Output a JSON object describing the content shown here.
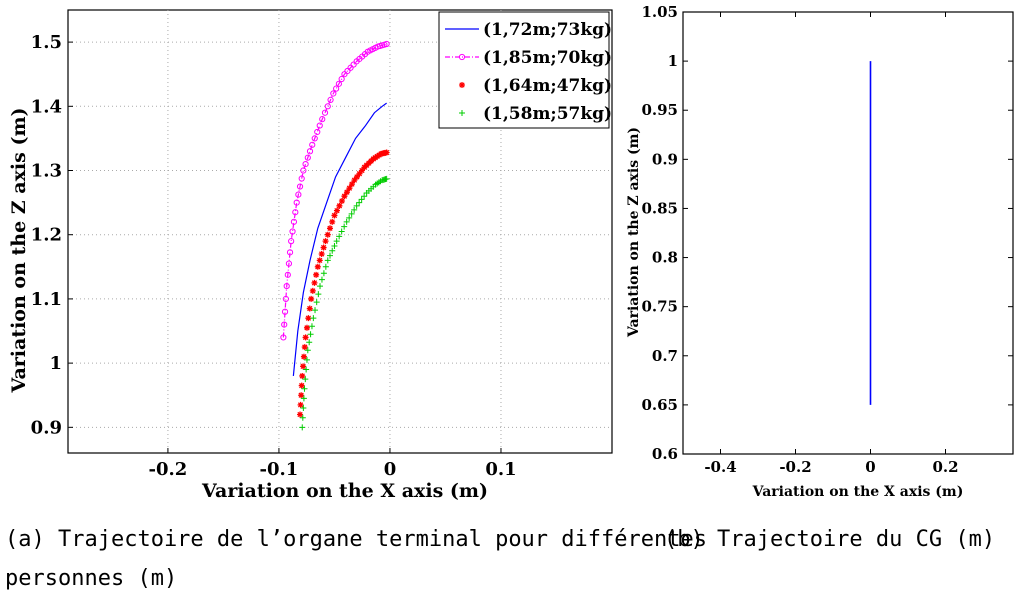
{
  "chart_data": [
    {
      "type": "scatter",
      "xlabel": "Variation on the X axis (m)",
      "ylabel": "Variation on the Z axis (m)",
      "xlim": [
        -0.29,
        0.2
      ],
      "ylim": [
        0.86,
        1.55
      ],
      "xticks": [
        "-0.2",
        "-0.1",
        "0",
        "0.1"
      ],
      "yticks": [
        "0.9",
        "1",
        "1.1",
        "1.2",
        "1.3",
        "1.4",
        "1.5"
      ],
      "grid": true,
      "legend_position": "top-right",
      "caption": "(a) Trajectoire de l’organe terminal pour différentes personnes (m)",
      "series": [
        {
          "name": "(1,72m;73kg)",
          "color": "#0000ff",
          "marker": "none",
          "line": "solid",
          "x": [
            -0.087,
            -0.083,
            -0.078,
            -0.072,
            -0.065,
            -0.057,
            -0.049,
            -0.04,
            -0.031,
            -0.022,
            -0.014,
            -0.007,
            -0.003
          ],
          "y": [
            0.98,
            1.05,
            1.11,
            1.16,
            1.21,
            1.25,
            1.29,
            1.32,
            1.35,
            1.37,
            1.39,
            1.4,
            1.405
          ]
        },
        {
          "name": "(1,85m;70kg)",
          "color": "#ff00ff",
          "marker": "circle",
          "line": "dashdot",
          "x": [
            -0.096,
            -0.093,
            -0.089,
            -0.084,
            -0.078,
            -0.07,
            -0.061,
            -0.051,
            -0.041,
            -0.03,
            -0.02,
            -0.011,
            -0.003
          ],
          "y": [
            1.04,
            1.12,
            1.19,
            1.25,
            1.3,
            1.34,
            1.38,
            1.42,
            1.45,
            1.47,
            1.485,
            1.493,
            1.497
          ]
        },
        {
          "name": "(1,64m;47kg)",
          "color": "#ff0000",
          "marker": "star",
          "line": "none",
          "x": [
            -0.081,
            -0.079,
            -0.076,
            -0.071,
            -0.065,
            -0.058,
            -0.05,
            -0.041,
            -0.032,
            -0.023,
            -0.015,
            -0.008,
            -0.003
          ],
          "y": [
            0.92,
            0.98,
            1.04,
            1.1,
            1.15,
            1.19,
            1.23,
            1.26,
            1.285,
            1.305,
            1.318,
            1.326,
            1.328
          ]
        },
        {
          "name": "(1,58m;57kg)",
          "color": "#00cc00",
          "marker": "plus",
          "line": "none",
          "x": [
            -0.079,
            -0.077,
            -0.074,
            -0.069,
            -0.063,
            -0.056,
            -0.048,
            -0.039,
            -0.03,
            -0.021,
            -0.013,
            -0.007,
            -0.003
          ],
          "y": [
            0.9,
            0.96,
            1.02,
            1.07,
            1.12,
            1.16,
            1.19,
            1.22,
            1.245,
            1.265,
            1.278,
            1.285,
            1.287
          ]
        }
      ]
    },
    {
      "type": "line",
      "xlabel": "Variation on the X axis (m)",
      "ylabel": "Variation on the Z axis (m)",
      "xlim": [
        -0.5,
        0.38
      ],
      "ylim": [
        0.6,
        1.05
      ],
      "xticks": [
        "-0.4",
        "-0.2",
        "0",
        "0.2"
      ],
      "yticks": [
        "0.6",
        "0.65",
        "0.7",
        "0.75",
        "0.8",
        "0.85",
        "0.9",
        "0.95",
        "1",
        "1.05"
      ],
      "grid": false,
      "caption": "(b) Trajectoire du CG (m)",
      "series": [
        {
          "color": "#0000ff",
          "x": [
            0,
            0
          ],
          "y": [
            0.65,
            1.0
          ]
        }
      ]
    }
  ]
}
